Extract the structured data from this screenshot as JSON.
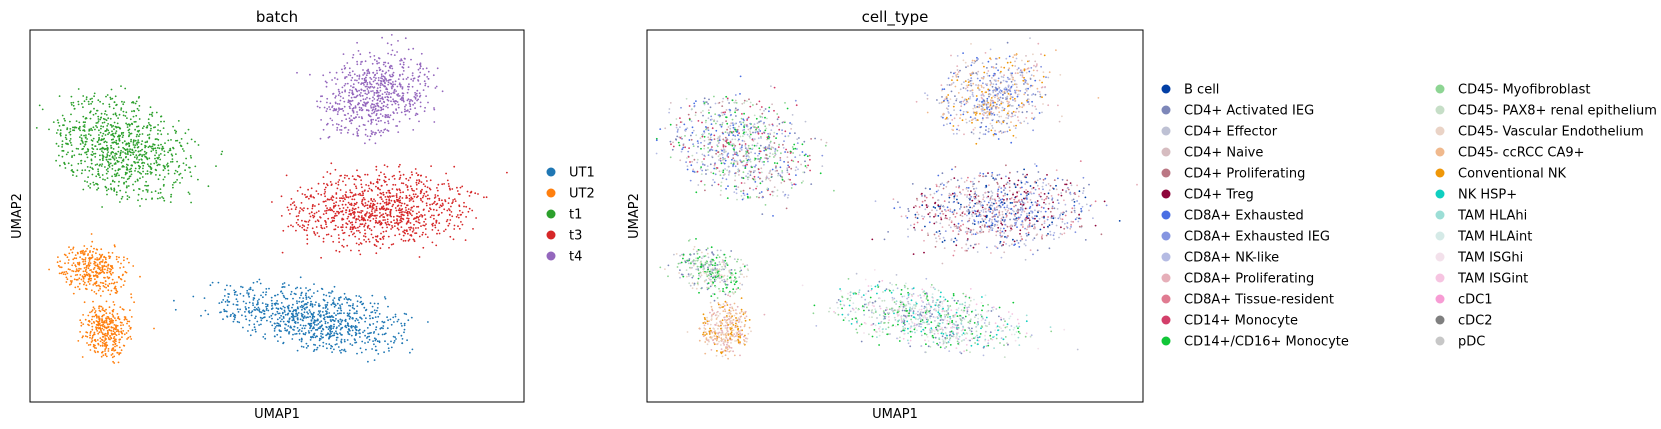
{
  "chart_data": [
    {
      "type": "scatter",
      "title": "batch",
      "xlabel": "UMAP1",
      "ylabel": "UMAP2",
      "grid": false,
      "ticks": false,
      "legend_placement": "right",
      "series": [
        {
          "name": "UT1",
          "color": "#1f77b4"
        },
        {
          "name": "UT2",
          "color": "#ff7f0e"
        },
        {
          "name": "t1",
          "color": "#2ca02c"
        },
        {
          "name": "t3",
          "color": "#d62728"
        },
        {
          "name": "t4",
          "color": "#9467bd"
        }
      ]
    },
    {
      "type": "scatter",
      "title": "cell_type",
      "xlabel": "UMAP1",
      "ylabel": "UMAP2",
      "grid": false,
      "ticks": false,
      "legend_placement": "right",
      "series": [
        {
          "name": "B cell",
          "color": "#023fa5"
        },
        {
          "name": "CD4+ Activated IEG",
          "color": "#7d87b9"
        },
        {
          "name": "CD4+ Effector",
          "color": "#bec1d4"
        },
        {
          "name": "CD4+ Naive",
          "color": "#d6bcc0"
        },
        {
          "name": "CD4+ Proliferating",
          "color": "#bb7784"
        },
        {
          "name": "CD4+ Treg",
          "color": "#8e063b"
        },
        {
          "name": "CD8A+ Exhausted",
          "color": "#4a6fe3"
        },
        {
          "name": "CD8A+ Exhausted IEG",
          "color": "#8595e1"
        },
        {
          "name": "CD8A+ NK-like",
          "color": "#b5bbe3"
        },
        {
          "name": "CD8A+ Proliferating",
          "color": "#e6afb9"
        },
        {
          "name": "CD8A+ Tissue-resident",
          "color": "#e07b91"
        },
        {
          "name": "CD14+ Monocyte",
          "color": "#d33f6a"
        },
        {
          "name": "CD14+/CD16+ Monocyte",
          "color": "#11c638"
        },
        {
          "name": "CD45- Myofibroblast",
          "color": "#8dd593"
        },
        {
          "name": "CD45- PAX8+ renal epithelium",
          "color": "#c6dec7"
        },
        {
          "name": "CD45- Vascular Endothelium",
          "color": "#ead3c6"
        },
        {
          "name": "CD45- ccRCC CA9+",
          "color": "#f0b98d"
        },
        {
          "name": "Conventional NK",
          "color": "#ef9708"
        },
        {
          "name": "NK HSP+",
          "color": "#0fcfc0"
        },
        {
          "name": "TAM HLAhi",
          "color": "#9cded6"
        },
        {
          "name": "TAM HLAint",
          "color": "#d5eae7"
        },
        {
          "name": "TAM ISGhi",
          "color": "#f3e1eb"
        },
        {
          "name": "TAM ISGint",
          "color": "#f6c4e1"
        },
        {
          "name": "cDC1",
          "color": "#f79cd4"
        },
        {
          "name": "cDC2",
          "color": "#7f7f7f"
        },
        {
          "name": "pDC",
          "color": "#c7c7c7"
        }
      ]
    }
  ]
}
